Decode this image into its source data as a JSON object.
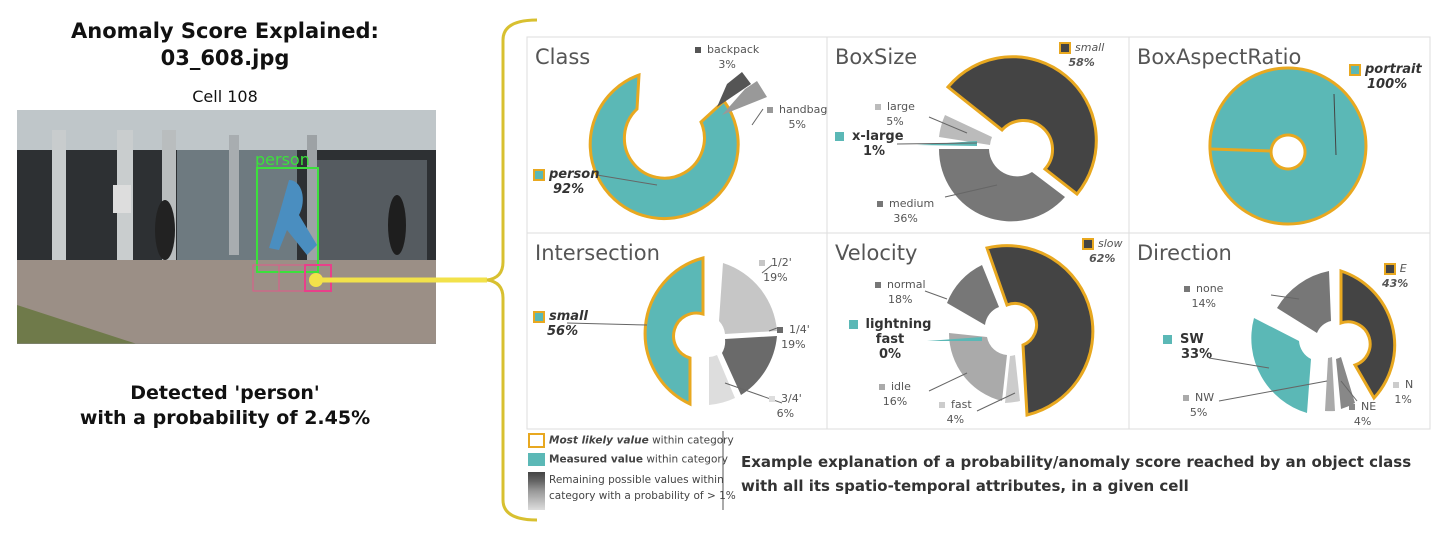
{
  "header": {
    "title_line1": "Anomaly Score Explained:",
    "title_line2": "03_608.jpg",
    "cell": "Cell 108"
  },
  "image": {
    "detection_label": "person"
  },
  "result": {
    "line1": "Detected 'person'",
    "line2": "with a probability of 2.45%"
  },
  "colors": {
    "teal": "#5bb8b6",
    "orange": "#e8a820",
    "dark": "#4a4a4a",
    "mid": "#7a7a7a",
    "light": "#b3b3b3",
    "bracket": "#d8c030"
  },
  "panels": {
    "class": {
      "title": "Class",
      "likely": "person",
      "likely_pct": "92%",
      "l1": "backpack",
      "l1p": "3%",
      "l2": "handbag",
      "l2p": "5%"
    },
    "boxsize": {
      "title": "BoxSize",
      "likely": "small",
      "likely_pct": "58%",
      "measured": "x-large",
      "measured_pct": "1%",
      "l1": "large",
      "l1p": "5%",
      "l2": "medium",
      "l2p": "36%"
    },
    "aspect": {
      "title": "BoxAspectRatio",
      "likely": "portrait",
      "likely_pct": "100%"
    },
    "intersection": {
      "title": "Intersection",
      "likely": "small",
      "likely_pct": "56%",
      "l1": "1/2'",
      "l1p": "19%",
      "l2": "1/4'",
      "l2p": "19%",
      "l3": "3/4'",
      "l3p": "6%"
    },
    "velocity": {
      "title": "Velocity",
      "likely": "slow",
      "likely_pct": "62%",
      "measured_a": "lightning",
      "measured_b": "fast",
      "measured_pct": "0%",
      "l1": "normal",
      "l1p": "18%",
      "l2": "idle",
      "l2p": "16%",
      "l3": "fast",
      "l3p": "4%"
    },
    "direction": {
      "title": "Direction",
      "likely": "E",
      "likely_pct": "43%",
      "measured": "SW",
      "measured_pct": "33%",
      "l1": "none",
      "l1p": "14%",
      "l2": "NW",
      "l2p": "5%",
      "l3": "NE",
      "l3p": "4%",
      "l4": "N",
      "l4p": "1%"
    }
  },
  "legend": {
    "likely_bold": "Most likely value",
    "likely_rest": "within category",
    "measured_bold": "Measured value",
    "measured_rest": "within category",
    "remaining_line1": "Remaining possible values within",
    "remaining_line2": "category with a probability of > 1%"
  },
  "caption": {
    "text": "Example explanation of a probability/anomaly score reached by an object class with all its spatio-temporal attributes, in a given cell"
  }
}
